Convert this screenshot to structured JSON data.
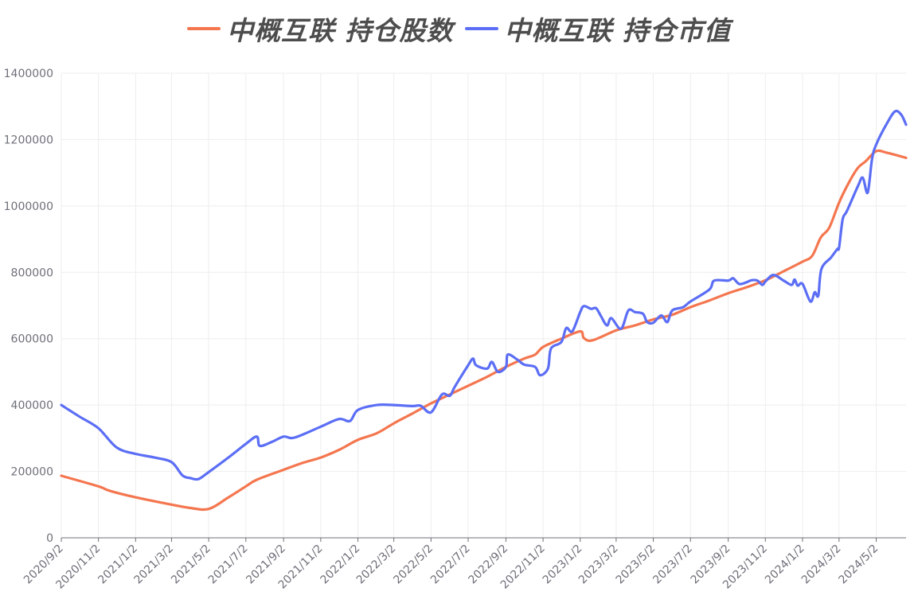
{
  "legend": [
    {
      "label": "中概互联 持仓股数",
      "color": "#f4764f"
    },
    {
      "label": "中概互联 持仓市值",
      "color": "#5b6ef5"
    }
  ],
  "chart_data": {
    "type": "line",
    "title": "",
    "xlabel": "",
    "ylabel": "",
    "ylim": [
      0,
      1400000
    ],
    "yticks": [
      0,
      200000,
      400000,
      600000,
      800000,
      1000000,
      1200000,
      1400000
    ],
    "xlim": [
      "2020-09-02",
      "2024-06-20"
    ],
    "xticks": [
      "2020/9/2",
      "2020/11/2",
      "2021/1/2",
      "2021/3/2",
      "2021/5/2",
      "2021/7/2",
      "2021/9/2",
      "2021/11/2",
      "2022/1/2",
      "2022/3/2",
      "2022/5/2",
      "2022/7/2",
      "2022/9/2",
      "2022/11/2",
      "2023/1/2",
      "2023/3/2",
      "2023/5/2",
      "2023/7/2",
      "2023/9/2",
      "2023/11/2",
      "2024/1/2",
      "2024/3/2",
      "2024/5/2"
    ],
    "grid": true,
    "legend_position": "top",
    "series": [
      {
        "name": "中概互联 持仓股数",
        "color": "#f4764f",
        "points": [
          [
            "2020-09-02",
            187000
          ],
          [
            "2020-11-02",
            155000
          ],
          [
            "2020-11-20",
            142000
          ],
          [
            "2021-01-02",
            122000
          ],
          [
            "2021-03-02",
            100000
          ],
          [
            "2021-04-02",
            90000
          ],
          [
            "2021-05-02",
            87000
          ],
          [
            "2021-06-02",
            120000
          ],
          [
            "2021-07-02",
            155000
          ],
          [
            "2021-07-20",
            175000
          ],
          [
            "2021-09-02",
            205000
          ],
          [
            "2021-10-02",
            225000
          ],
          [
            "2021-11-02",
            242000
          ],
          [
            "2021-12-02",
            265000
          ],
          [
            "2022-01-02",
            295000
          ],
          [
            "2022-02-02",
            315000
          ],
          [
            "2022-03-02",
            345000
          ],
          [
            "2022-04-02",
            375000
          ],
          [
            "2022-05-02",
            405000
          ],
          [
            "2022-06-02",
            432000
          ],
          [
            "2022-07-02",
            458000
          ],
          [
            "2022-08-02",
            485000
          ],
          [
            "2022-09-02",
            515000
          ],
          [
            "2022-10-02",
            540000
          ],
          [
            "2022-10-20",
            552000
          ],
          [
            "2022-11-02",
            575000
          ],
          [
            "2022-12-02",
            600000
          ],
          [
            "2023-01-02",
            622000
          ],
          [
            "2023-01-08",
            602000
          ],
          [
            "2023-01-22",
            595000
          ],
          [
            "2023-03-02",
            625000
          ],
          [
            "2023-04-02",
            640000
          ],
          [
            "2023-05-02",
            658000
          ],
          [
            "2023-06-02",
            672000
          ],
          [
            "2023-07-02",
            695000
          ],
          [
            "2023-08-02",
            715000
          ],
          [
            "2023-09-02",
            737000
          ],
          [
            "2023-10-02",
            755000
          ],
          [
            "2023-11-02",
            776000
          ],
          [
            "2023-12-02",
            803000
          ],
          [
            "2024-01-02",
            832000
          ],
          [
            "2024-01-18",
            850000
          ],
          [
            "2024-02-01",
            905000
          ],
          [
            "2024-02-15",
            935000
          ],
          [
            "2024-03-02",
            1010000
          ],
          [
            "2024-03-18",
            1070000
          ],
          [
            "2024-04-02",
            1115000
          ],
          [
            "2024-04-15",
            1135000
          ],
          [
            "2024-05-02",
            1165000
          ],
          [
            "2024-05-20",
            1160000
          ],
          [
            "2024-06-20",
            1145000
          ]
        ]
      },
      {
        "name": "中概互联 持仓市值",
        "color": "#5b6ef5",
        "points": [
          [
            "2020-09-02",
            400000
          ],
          [
            "2020-10-02",
            365000
          ],
          [
            "2020-11-02",
            330000
          ],
          [
            "2020-12-02",
            272000
          ],
          [
            "2021-01-02",
            253000
          ],
          [
            "2021-02-02",
            242000
          ],
          [
            "2021-03-02",
            228000
          ],
          [
            "2021-03-20",
            188000
          ],
          [
            "2021-04-02",
            180000
          ],
          [
            "2021-04-15",
            177000
          ],
          [
            "2021-05-02",
            198000
          ],
          [
            "2021-06-02",
            240000
          ],
          [
            "2021-07-02",
            283000
          ],
          [
            "2021-07-20",
            305000
          ],
          [
            "2021-07-25",
            277000
          ],
          [
            "2021-08-15",
            290000
          ],
          [
            "2021-09-02",
            305000
          ],
          [
            "2021-09-20",
            302000
          ],
          [
            "2021-11-02",
            335000
          ],
          [
            "2021-12-02",
            358000
          ],
          [
            "2021-12-20",
            352000
          ],
          [
            "2022-01-02",
            385000
          ],
          [
            "2022-02-02",
            400000
          ],
          [
            "2022-03-02",
            400000
          ],
          [
            "2022-04-02",
            397000
          ],
          [
            "2022-04-15",
            398000
          ],
          [
            "2022-05-02",
            378000
          ],
          [
            "2022-05-20",
            432000
          ],
          [
            "2022-06-02",
            428000
          ],
          [
            "2022-06-10",
            455000
          ],
          [
            "2022-07-02",
            520000
          ],
          [
            "2022-07-10",
            540000
          ],
          [
            "2022-07-15",
            520000
          ],
          [
            "2022-08-02",
            510000
          ],
          [
            "2022-08-10",
            530000
          ],
          [
            "2022-08-20",
            500000
          ],
          [
            "2022-09-02",
            515000
          ],
          [
            "2022-09-05",
            552000
          ],
          [
            "2022-09-20",
            538000
          ],
          [
            "2022-10-02",
            522000
          ],
          [
            "2022-10-20",
            515000
          ],
          [
            "2022-10-28",
            490000
          ],
          [
            "2022-11-10",
            510000
          ],
          [
            "2022-11-15",
            570000
          ],
          [
            "2022-12-02",
            590000
          ],
          [
            "2022-12-10",
            632000
          ],
          [
            "2022-12-20",
            622000
          ],
          [
            "2023-01-02",
            680000
          ],
          [
            "2023-01-08",
            698000
          ],
          [
            "2023-01-20",
            690000
          ],
          [
            "2023-01-28",
            692000
          ],
          [
            "2023-02-05",
            668000
          ],
          [
            "2023-02-15",
            640000
          ],
          [
            "2023-02-22",
            662000
          ],
          [
            "2023-03-10",
            630000
          ],
          [
            "2023-03-22",
            685000
          ],
          [
            "2023-04-02",
            680000
          ],
          [
            "2023-04-15",
            675000
          ],
          [
            "2023-04-22",
            650000
          ],
          [
            "2023-05-02",
            648000
          ],
          [
            "2023-05-15",
            670000
          ],
          [
            "2023-05-25",
            650000
          ],
          [
            "2023-06-02",
            685000
          ],
          [
            "2023-06-20",
            695000
          ],
          [
            "2023-07-02",
            712000
          ],
          [
            "2023-08-02",
            748000
          ],
          [
            "2023-08-10",
            775000
          ],
          [
            "2023-09-02",
            775000
          ],
          [
            "2023-09-10",
            782000
          ],
          [
            "2023-09-20",
            765000
          ],
          [
            "2023-10-02",
            770000
          ],
          [
            "2023-10-10",
            776000
          ],
          [
            "2023-10-20",
            775000
          ],
          [
            "2023-10-28",
            762000
          ],
          [
            "2023-11-02",
            772000
          ],
          [
            "2023-11-15",
            792000
          ],
          [
            "2023-12-02",
            775000
          ],
          [
            "2023-12-15",
            762000
          ],
          [
            "2023-12-20",
            778000
          ],
          [
            "2023-12-25",
            760000
          ],
          [
            "2024-01-02",
            765000
          ],
          [
            "2024-01-15",
            712000
          ],
          [
            "2024-01-22",
            740000
          ],
          [
            "2024-01-28",
            730000
          ],
          [
            "2024-02-02",
            810000
          ],
          [
            "2024-02-18",
            845000
          ],
          [
            "2024-02-28",
            870000
          ],
          [
            "2024-03-02",
            875000
          ],
          [
            "2024-03-08",
            960000
          ],
          [
            "2024-03-15",
            985000
          ],
          [
            "2024-04-02",
            1060000
          ],
          [
            "2024-04-10",
            1085000
          ],
          [
            "2024-04-18",
            1040000
          ],
          [
            "2024-04-25",
            1140000
          ],
          [
            "2024-05-02",
            1185000
          ],
          [
            "2024-05-20",
            1250000
          ],
          [
            "2024-06-02",
            1285000
          ],
          [
            "2024-06-12",
            1275000
          ],
          [
            "2024-06-20",
            1245000
          ]
        ]
      }
    ]
  }
}
